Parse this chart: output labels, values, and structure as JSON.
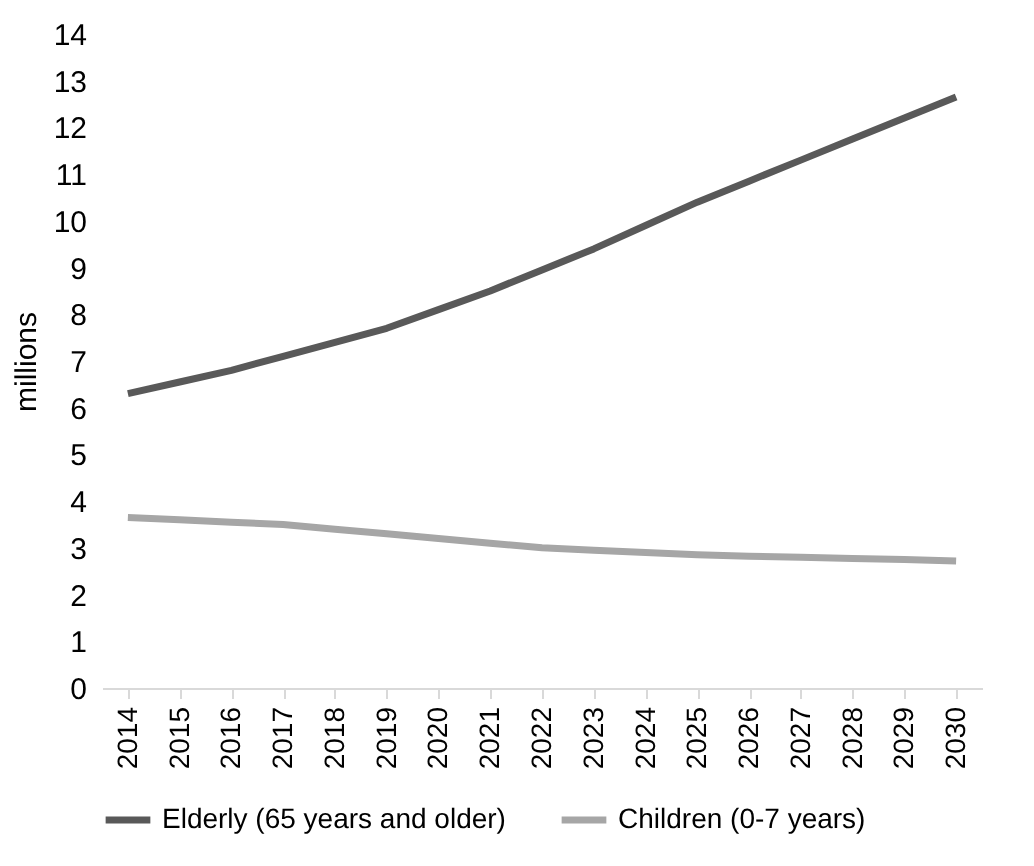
{
  "chart_data": {
    "type": "line",
    "ylabel": "millions",
    "categories": [
      "2014",
      "2015",
      "2016",
      "2017",
      "2018",
      "2019",
      "2020",
      "2021",
      "2022",
      "2023",
      "2024",
      "2025",
      "2026",
      "2027",
      "2028",
      "2029",
      "2030"
    ],
    "series": [
      {
        "name": "Elderly (65 years and older)",
        "color": "#595959",
        "values": [
          6.3,
          6.55,
          6.8,
          7.1,
          7.4,
          7.7,
          8.1,
          8.5,
          8.95,
          9.4,
          9.9,
          10.4,
          10.85,
          11.3,
          11.75,
          12.2,
          12.65
        ]
      },
      {
        "name": "Children (0-7 years)",
        "color": "#a6a6a6",
        "values": [
          3.65,
          3.6,
          3.55,
          3.5,
          3.4,
          3.3,
          3.2,
          3.1,
          3.0,
          2.95,
          2.9,
          2.85,
          2.82,
          2.8,
          2.77,
          2.75,
          2.72
        ]
      }
    ],
    "ylim": [
      0,
      14
    ],
    "yticks": [
      0,
      1,
      2,
      3,
      4,
      5,
      6,
      7,
      8,
      9,
      10,
      11,
      12,
      13,
      14
    ],
    "grid": false,
    "legend": "bottom",
    "marker": "none",
    "line_style": "solid"
  }
}
